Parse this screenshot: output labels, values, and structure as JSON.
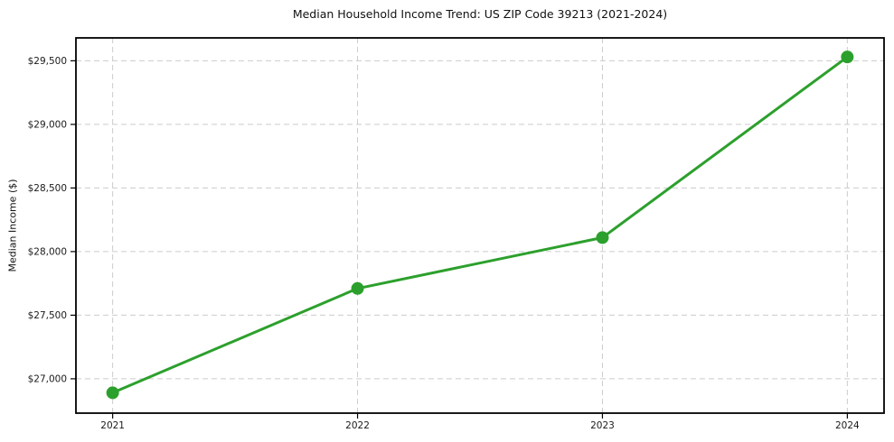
{
  "chart_data": {
    "type": "line",
    "title": "Median Household Income Trend: US ZIP Code 39213 (2021-2024)",
    "xlabel": "",
    "ylabel": "Median Income ($)",
    "x": [
      2021,
      2022,
      2023,
      2024
    ],
    "x_tick_labels": [
      "2021",
      "2022",
      "2023",
      "2024"
    ],
    "series": [
      {
        "name": "Median Household Income",
        "values": [
          26890,
          27710,
          28110,
          29530
        ]
      }
    ],
    "y_ticks": [
      27000,
      27500,
      28000,
      28500,
      29000,
      29500
    ],
    "y_tick_labels": [
      "$27,000",
      "$27,500",
      "$28,000",
      "$28,500",
      "$29,000",
      "$29,500"
    ],
    "xlim": [
      2020.85,
      2024.15
    ],
    "ylim": [
      26730,
      29680
    ],
    "grid": true,
    "grid_style": "dashed",
    "legend_position": "none",
    "line_color": "#2ca02c",
    "marker_color": "#2ca02c",
    "grid_color": "#cccccc",
    "spine_color": "#000000",
    "background_color": "#ffffff"
  }
}
